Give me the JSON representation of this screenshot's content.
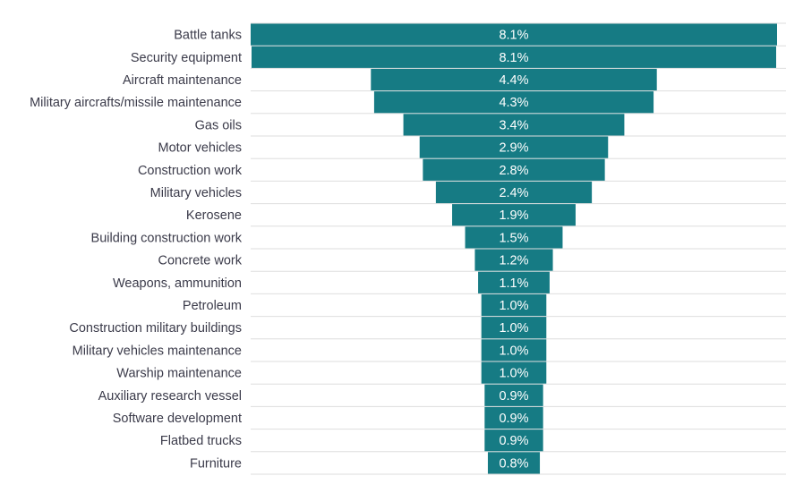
{
  "chart_data": {
    "type": "bar",
    "subtype": "funnel",
    "title": "",
    "xlabel": "",
    "ylabel": "",
    "value_format": "percent",
    "categories": [
      "Battle tanks",
      "Security equipment",
      "Aircraft maintenance",
      "Military aircrafts/missile maintenance",
      "Gas oils",
      "Motor vehicles",
      "Construction work",
      "Military vehicles ",
      "Kerosene",
      "Building construction work",
      "Concrete work",
      "Weapons, ammunition",
      "Petroleum",
      "Construction military buildings",
      "Military vehicles maintenance",
      "Warship maintenance",
      "Auxiliary research vessel",
      "Software development ",
      "Flatbed trucks",
      "Furniture"
    ],
    "values": [
      8.1,
      8.1,
      4.4,
      4.3,
      3.4,
      2.9,
      2.8,
      2.4,
      1.9,
      1.5,
      1.2,
      1.1,
      1.0,
      1.0,
      1.0,
      1.0,
      0.9,
      0.9,
      0.9,
      0.8
    ],
    "value_labels": [
      "8.1%",
      "8.1%",
      "4.4%",
      "4.3%",
      "3.4%",
      "2.9%",
      "2.8%",
      "2.4%",
      "1.9%",
      "1.5%",
      "1.2%",
      "1.1%",
      "1.0%",
      "1.0%",
      "1.0%",
      "1.0%",
      "0.9%",
      "0.9%",
      "0.9%",
      "0.8%"
    ],
    "bar_color": "#167b84",
    "gridline_color": "#dedede",
    "grid": true,
    "legend": "none"
  }
}
